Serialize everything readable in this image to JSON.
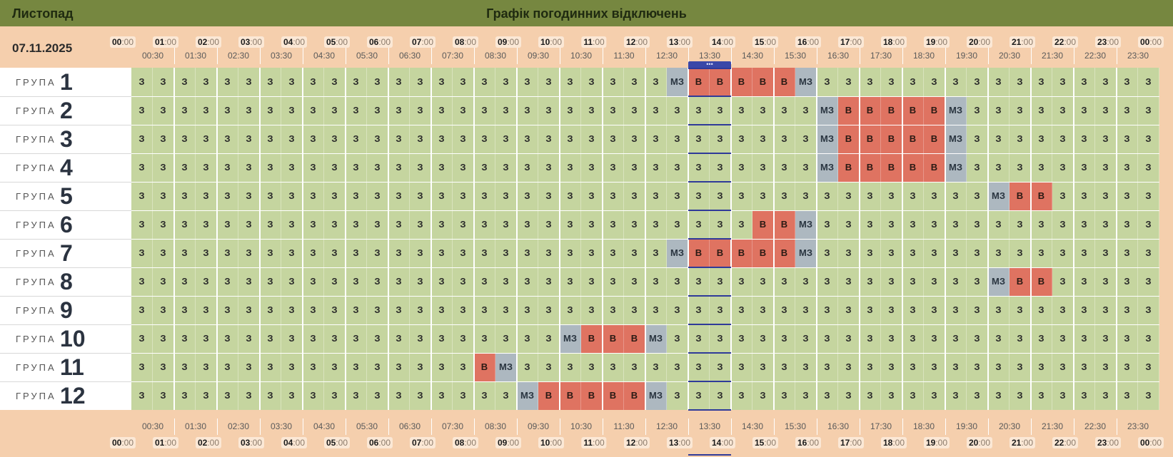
{
  "header": {
    "month": "Листопад",
    "title": "Графік погодинних відключень"
  },
  "date": "07.11.2025",
  "now_indicator": "•••",
  "hours": [
    "00",
    "01",
    "02",
    "03",
    "04",
    "05",
    "06",
    "07",
    "08",
    "09",
    "10",
    "11",
    "12",
    "13",
    "14",
    "15",
    "16",
    "17",
    "18",
    "19",
    "20",
    "21",
    "22",
    "23",
    "00"
  ],
  "minutes_suffix": ":00",
  "half_hours": [
    "00:30",
    "01:30",
    "02:30",
    "03:30",
    "04:30",
    "05:30",
    "06:30",
    "07:30",
    "08:30",
    "09:30",
    "10:30",
    "11:30",
    "12:30",
    "13:30",
    "14:30",
    "15:30",
    "16:30",
    "17:30",
    "18:30",
    "19:30",
    "20:30",
    "21:30",
    "22:30",
    "23:30"
  ],
  "group_word": "ГРУПА",
  "status_labels": {
    "z": "З",
    "mz": "МЗ",
    "v": "В"
  },
  "colors": {
    "on": "#c5d59f",
    "maybe": "#adb8c0",
    "off": "#df7361",
    "header": "#768740",
    "now": "#2f3a99"
  },
  "groups": [
    {
      "number": "1",
      "slots": [
        "z",
        "z",
        "z",
        "z",
        "z",
        "z",
        "z",
        "z",
        "z",
        "z",
        "z",
        "z",
        "z",
        "z",
        "z",
        "z",
        "z",
        "z",
        "z",
        "z",
        "z",
        "z",
        "z",
        "z",
        "z",
        "mz",
        "v",
        "v",
        "v",
        "v",
        "v",
        "mz",
        "z",
        "z",
        "z",
        "z",
        "z",
        "z",
        "z",
        "z",
        "z",
        "z",
        "z",
        "z",
        "z",
        "z",
        "z",
        "z"
      ]
    },
    {
      "number": "2",
      "slots": [
        "z",
        "z",
        "z",
        "z",
        "z",
        "z",
        "z",
        "z",
        "z",
        "z",
        "z",
        "z",
        "z",
        "z",
        "z",
        "z",
        "z",
        "z",
        "z",
        "z",
        "z",
        "z",
        "z",
        "z",
        "z",
        "z",
        "z",
        "z",
        "z",
        "z",
        "z",
        "z",
        "mz",
        "v",
        "v",
        "v",
        "v",
        "v",
        "mz",
        "z",
        "z",
        "z",
        "z",
        "z",
        "z",
        "z",
        "z",
        "z"
      ]
    },
    {
      "number": "3",
      "slots": [
        "z",
        "z",
        "z",
        "z",
        "z",
        "z",
        "z",
        "z",
        "z",
        "z",
        "z",
        "z",
        "z",
        "z",
        "z",
        "z",
        "z",
        "z",
        "z",
        "z",
        "z",
        "z",
        "z",
        "z",
        "z",
        "z",
        "z",
        "z",
        "z",
        "z",
        "z",
        "z",
        "mz",
        "v",
        "v",
        "v",
        "v",
        "v",
        "mz",
        "z",
        "z",
        "z",
        "z",
        "z",
        "z",
        "z",
        "z",
        "z"
      ]
    },
    {
      "number": "4",
      "slots": [
        "z",
        "z",
        "z",
        "z",
        "z",
        "z",
        "z",
        "z",
        "z",
        "z",
        "z",
        "z",
        "z",
        "z",
        "z",
        "z",
        "z",
        "z",
        "z",
        "z",
        "z",
        "z",
        "z",
        "z",
        "z",
        "z",
        "z",
        "z",
        "z",
        "z",
        "z",
        "z",
        "mz",
        "v",
        "v",
        "v",
        "v",
        "v",
        "mz",
        "z",
        "z",
        "z",
        "z",
        "z",
        "z",
        "z",
        "z",
        "z"
      ]
    },
    {
      "number": "5",
      "slots": [
        "z",
        "z",
        "z",
        "z",
        "z",
        "z",
        "z",
        "z",
        "z",
        "z",
        "z",
        "z",
        "z",
        "z",
        "z",
        "z",
        "z",
        "z",
        "z",
        "z",
        "z",
        "z",
        "z",
        "z",
        "z",
        "z",
        "z",
        "z",
        "z",
        "z",
        "z",
        "z",
        "z",
        "z",
        "z",
        "z",
        "z",
        "z",
        "z",
        "z",
        "mz",
        "v",
        "v",
        "z",
        "z",
        "z",
        "z",
        "z"
      ]
    },
    {
      "number": "6",
      "slots": [
        "z",
        "z",
        "z",
        "z",
        "z",
        "z",
        "z",
        "z",
        "z",
        "z",
        "z",
        "z",
        "z",
        "z",
        "z",
        "z",
        "z",
        "z",
        "z",
        "z",
        "z",
        "z",
        "z",
        "z",
        "z",
        "z",
        "z",
        "z",
        "z",
        "v",
        "v",
        "mz",
        "z",
        "z",
        "z",
        "z",
        "z",
        "z",
        "z",
        "z",
        "z",
        "z",
        "z",
        "z",
        "z",
        "z",
        "z",
        "z"
      ]
    },
    {
      "number": "7",
      "slots": [
        "z",
        "z",
        "z",
        "z",
        "z",
        "z",
        "z",
        "z",
        "z",
        "z",
        "z",
        "z",
        "z",
        "z",
        "z",
        "z",
        "z",
        "z",
        "z",
        "z",
        "z",
        "z",
        "z",
        "z",
        "z",
        "mz",
        "v",
        "v",
        "v",
        "v",
        "v",
        "mz",
        "z",
        "z",
        "z",
        "z",
        "z",
        "z",
        "z",
        "z",
        "z",
        "z",
        "z",
        "z",
        "z",
        "z",
        "z",
        "z"
      ]
    },
    {
      "number": "8",
      "slots": [
        "z",
        "z",
        "z",
        "z",
        "z",
        "z",
        "z",
        "z",
        "z",
        "z",
        "z",
        "z",
        "z",
        "z",
        "z",
        "z",
        "z",
        "z",
        "z",
        "z",
        "z",
        "z",
        "z",
        "z",
        "z",
        "z",
        "z",
        "z",
        "z",
        "z",
        "z",
        "z",
        "z",
        "z",
        "z",
        "z",
        "z",
        "z",
        "z",
        "z",
        "mz",
        "v",
        "v",
        "z",
        "z",
        "z",
        "z",
        "z"
      ]
    },
    {
      "number": "9",
      "slots": [
        "z",
        "z",
        "z",
        "z",
        "z",
        "z",
        "z",
        "z",
        "z",
        "z",
        "z",
        "z",
        "z",
        "z",
        "z",
        "z",
        "z",
        "z",
        "z",
        "z",
        "z",
        "z",
        "z",
        "z",
        "z",
        "z",
        "z",
        "z",
        "z",
        "z",
        "z",
        "z",
        "z",
        "z",
        "z",
        "z",
        "z",
        "z",
        "z",
        "z",
        "z",
        "z",
        "z",
        "z",
        "z",
        "z",
        "z",
        "z"
      ]
    },
    {
      "number": "10",
      "slots": [
        "z",
        "z",
        "z",
        "z",
        "z",
        "z",
        "z",
        "z",
        "z",
        "z",
        "z",
        "z",
        "z",
        "z",
        "z",
        "z",
        "z",
        "z",
        "z",
        "z",
        "mz",
        "v",
        "v",
        "v",
        "mz",
        "z",
        "z",
        "z",
        "z",
        "z",
        "z",
        "z",
        "z",
        "z",
        "z",
        "z",
        "z",
        "z",
        "z",
        "z",
        "z",
        "z",
        "z",
        "z",
        "z",
        "z",
        "z",
        "z"
      ]
    },
    {
      "number": "11",
      "slots": [
        "z",
        "z",
        "z",
        "z",
        "z",
        "z",
        "z",
        "z",
        "z",
        "z",
        "z",
        "z",
        "z",
        "z",
        "z",
        "z",
        "v",
        "mz",
        "z",
        "z",
        "z",
        "z",
        "z",
        "z",
        "z",
        "z",
        "z",
        "z",
        "z",
        "z",
        "z",
        "z",
        "z",
        "z",
        "z",
        "z",
        "z",
        "z",
        "z",
        "z",
        "z",
        "z",
        "z",
        "z",
        "z",
        "z",
        "z",
        "z"
      ]
    },
    {
      "number": "12",
      "slots": [
        "z",
        "z",
        "z",
        "z",
        "z",
        "z",
        "z",
        "z",
        "z",
        "z",
        "z",
        "z",
        "z",
        "z",
        "z",
        "z",
        "z",
        "z",
        "mz",
        "v",
        "v",
        "v",
        "v",
        "v",
        "mz",
        "z",
        "z",
        "z",
        "z",
        "z",
        "z",
        "z",
        "z",
        "z",
        "z",
        "z",
        "z",
        "z",
        "z",
        "z",
        "z",
        "z",
        "z",
        "z",
        "z",
        "z",
        "z",
        "z"
      ]
    }
  ]
}
